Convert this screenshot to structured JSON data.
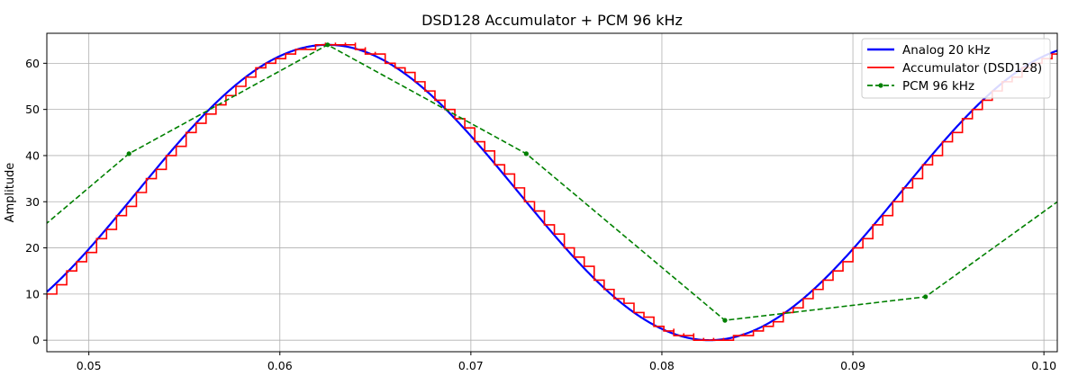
{
  "chart_data": {
    "type": "line",
    "title": "DSD128 Accumulator + PCM 96 kHz",
    "xlabel": "",
    "ylabel": "Amplitude",
    "xlim": [
      0.0478,
      0.1007
    ],
    "ylim": [
      -2.5,
      66.5
    ],
    "xticks": [
      0.05,
      0.06,
      0.07,
      0.08,
      0.09,
      0.1
    ],
    "xtick_labels": [
      "0.05",
      "0.06",
      "0.07",
      "0.08",
      "0.09",
      "0.10"
    ],
    "yticks": [
      0,
      10,
      20,
      30,
      40,
      50,
      60
    ],
    "ytick_labels": [
      "0",
      "10",
      "20",
      "30",
      "40",
      "50",
      "60"
    ],
    "grid": true,
    "legend_position": "top-right",
    "signal": {
      "amplitude_offset": 32,
      "amplitude": 32,
      "frequency": 0.04,
      "phase_x": 0.0625,
      "dsd_step": 0.000521
    },
    "series": [
      {
        "name": "Analog 20 kHz",
        "style": "solid",
        "color": "#0000ff",
        "kind": "analog"
      },
      {
        "name": "Accumulator (DSD128)",
        "style": "step",
        "color": "#ff0000",
        "kind": "accumulator"
      },
      {
        "name": "PCM 96 kHz",
        "style": "dashed",
        "color": "#008000",
        "x": [
          0.0477,
          0.0521,
          0.0625,
          0.0729,
          0.0833,
          0.0938,
          0.1042
        ],
        "y": [
          25.0,
          40.4,
          64.0,
          40.4,
          4.3,
          9.4,
          40.4
        ]
      }
    ]
  }
}
